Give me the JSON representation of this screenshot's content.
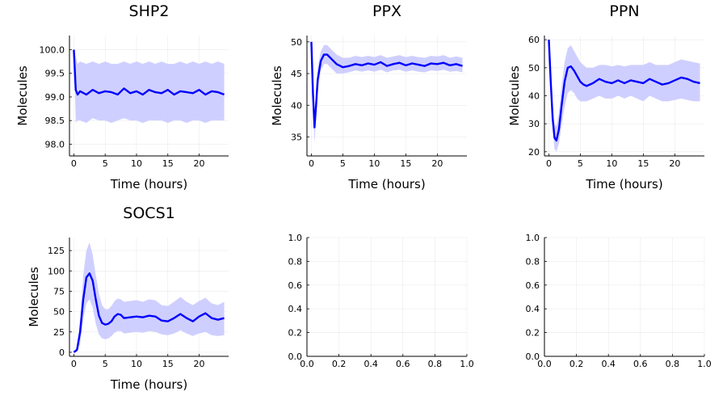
{
  "chart_data": [
    {
      "type": "line",
      "title": "SHP2",
      "xlabel": "Time (hours)",
      "ylabel": "Molecules",
      "xlim": [
        -0.7,
        24.7
      ],
      "ylim": [
        97.75,
        100.3
      ],
      "xticks": [
        0,
        5,
        10,
        15,
        20
      ],
      "xtick_labels": [
        "0",
        "5",
        "10",
        "15",
        "20"
      ],
      "yticks": [
        98.0,
        98.5,
        99.0,
        99.5,
        100.0
      ],
      "ytick_labels": [
        "98.0",
        "98.5",
        "99.0",
        "99.5",
        "100.0"
      ],
      "grid": true,
      "legend": "none",
      "line_color": "#0000ff",
      "band_color": "#ccccff",
      "series": [
        {
          "x": [
            0,
            0.3,
            0.6,
            1,
            2,
            3,
            4,
            5,
            6,
            7,
            8,
            9,
            10,
            11,
            12,
            13,
            14,
            15,
            16,
            17,
            18,
            19,
            20,
            21,
            22,
            23,
            24
          ],
          "mean": [
            100.0,
            99.15,
            99.05,
            99.12,
            99.05,
            99.15,
            99.08,
            99.12,
            99.1,
            99.05,
            99.18,
            99.08,
            99.12,
            99.05,
            99.15,
            99.1,
            99.08,
            99.15,
            99.05,
            99.12,
            99.1,
            99.08,
            99.15,
            99.05,
            99.12,
            99.1,
            99.05
          ],
          "lower": [
            100.0,
            98.45,
            98.5,
            98.5,
            98.45,
            98.55,
            98.5,
            98.5,
            98.45,
            98.5,
            98.55,
            98.5,
            98.5,
            98.45,
            98.5,
            98.5,
            98.5,
            98.45,
            98.5,
            98.5,
            98.45,
            98.5,
            98.5,
            98.45,
            98.5,
            98.5,
            98.5
          ],
          "upper": [
            100.0,
            99.85,
            99.7,
            99.75,
            99.7,
            99.75,
            99.7,
            99.75,
            99.7,
            99.7,
            99.75,
            99.7,
            99.75,
            99.7,
            99.75,
            99.7,
            99.75,
            99.7,
            99.7,
            99.75,
            99.7,
            99.75,
            99.7,
            99.75,
            99.7,
            99.75,
            99.7
          ]
        }
      ]
    },
    {
      "type": "line",
      "title": "PPX",
      "xlabel": "Time (hours)",
      "ylabel": "Molecules",
      "xlim": [
        -0.7,
        24.7
      ],
      "ylim": [
        32,
        51
      ],
      "xticks": [
        0,
        5,
        10,
        15,
        20
      ],
      "xtick_labels": [
        "0",
        "5",
        "10",
        "15",
        "20"
      ],
      "yticks": [
        35,
        40,
        45,
        50
      ],
      "ytick_labels": [
        "35",
        "40",
        "45",
        "50"
      ],
      "grid": true,
      "legend": "none",
      "line_color": "#0000ff",
      "band_color": "#ccccff",
      "series": [
        {
          "x": [
            0,
            0.25,
            0.5,
            0.75,
            1,
            1.5,
            2,
            2.5,
            3,
            4,
            5,
            6,
            7,
            8,
            9,
            10,
            11,
            12,
            13,
            14,
            15,
            16,
            17,
            18,
            19,
            20,
            21,
            22,
            23,
            24
          ],
          "mean": [
            50,
            42,
            36.5,
            40,
            44,
            47,
            48,
            48,
            47.5,
            46.5,
            46,
            46.2,
            46.5,
            46.3,
            46.6,
            46.4,
            46.8,
            46.2,
            46.5,
            46.7,
            46.3,
            46.6,
            46.4,
            46.2,
            46.6,
            46.5,
            46.7,
            46.3,
            46.5,
            46.2
          ],
          "lower": [
            50,
            40,
            34,
            38,
            42,
            45.5,
            46.5,
            46.5,
            46,
            45,
            45,
            45.2,
            45.5,
            45.3,
            45.5,
            45.3,
            45.6,
            45.2,
            45.5,
            45.6,
            45.3,
            45.5,
            45.3,
            45.2,
            45.5,
            45.4,
            45.6,
            45.3,
            45.4,
            45.2
          ],
          "upper": [
            50,
            44,
            39,
            42,
            46,
            48.5,
            49.5,
            49.5,
            49,
            48,
            47.5,
            47.5,
            47.8,
            47.6,
            47.8,
            47.6,
            47.9,
            47.5,
            47.7,
            47.9,
            47.6,
            47.8,
            47.6,
            47.5,
            47.8,
            47.7,
            47.9,
            47.5,
            47.7,
            47.5
          ]
        }
      ]
    },
    {
      "type": "line",
      "title": "PPN",
      "xlabel": "Time (hours)",
      "ylabel": "Molecules",
      "xlim": [
        -0.7,
        24.7
      ],
      "ylim": [
        18.5,
        61.5
      ],
      "xticks": [
        0,
        5,
        10,
        15,
        20
      ],
      "xtick_labels": [
        "0",
        "5",
        "10",
        "15",
        "20"
      ],
      "yticks": [
        20,
        30,
        40,
        50,
        60
      ],
      "ytick_labels": [
        "20",
        "30",
        "40",
        "50",
        "60"
      ],
      "grid": true,
      "legend": "none",
      "line_color": "#0000ff",
      "band_color": "#ccccff",
      "series": [
        {
          "x": [
            0,
            0.3,
            0.6,
            0.9,
            1.2,
            1.6,
            2,
            2.5,
            3,
            3.5,
            4,
            4.5,
            5,
            5.5,
            6,
            7,
            8,
            9,
            10,
            11,
            12,
            13,
            14,
            15,
            16,
            17,
            18,
            19,
            20,
            21,
            22,
            23,
            24
          ],
          "mean": [
            60,
            45,
            32,
            25,
            24,
            28,
            36,
            45,
            50,
            50.5,
            49,
            47,
            45,
            44,
            43.5,
            44.5,
            46,
            45,
            44.5,
            45.5,
            44.5,
            45.5,
            45,
            44.5,
            46,
            45,
            44,
            44.5,
            45.5,
            46.5,
            46,
            45,
            44.5
          ],
          "lower": [
            60,
            40,
            28,
            21,
            20,
            23,
            29,
            36,
            41,
            42,
            41,
            39,
            38,
            38,
            38,
            39,
            40,
            39,
            39,
            40,
            39,
            40,
            39,
            38,
            40,
            39,
            38,
            38,
            38.5,
            39,
            38.5,
            38,
            38
          ],
          "upper": [
            60,
            50,
            37,
            30,
            29,
            34,
            43,
            52,
            57,
            58,
            56,
            54,
            52,
            51,
            50,
            50,
            51,
            51,
            50.5,
            51,
            50.5,
            51,
            51,
            51,
            52,
            51,
            51,
            51,
            52,
            53,
            52.5,
            52,
            51.5
          ]
        }
      ]
    },
    {
      "type": "line",
      "title": "SOCS1",
      "xlabel": "Time (hours)",
      "ylabel": "Molecules",
      "xlim": [
        -0.7,
        24.7
      ],
      "ylim": [
        -5,
        141
      ],
      "xticks": [
        0,
        5,
        10,
        15,
        20
      ],
      "xtick_labels": [
        "0",
        "5",
        "10",
        "15",
        "20"
      ],
      "yticks": [
        0,
        25,
        50,
        75,
        100,
        125
      ],
      "ytick_labels": [
        "0",
        "25",
        "50",
        "75",
        "100",
        "125"
      ],
      "grid": true,
      "legend": "none",
      "line_color": "#0000ff",
      "band_color": "#ccccff",
      "series": [
        {
          "x": [
            0,
            0.5,
            1,
            1.5,
            2,
            2.5,
            3,
            3.5,
            4,
            4.5,
            5,
            5.5,
            6,
            6.5,
            7,
            7.5,
            8,
            9,
            10,
            11,
            12,
            13,
            14,
            15,
            16,
            17,
            18,
            19,
            20,
            21,
            22,
            23,
            24
          ],
          "mean": [
            0,
            3,
            25,
            65,
            92,
            97,
            88,
            65,
            45,
            36,
            34,
            35,
            38,
            44,
            47,
            46,
            42,
            43,
            44,
            43,
            45,
            44,
            39,
            38,
            42,
            47,
            42,
            38,
            44,
            48,
            42,
            40,
            42
          ],
          "lower": [
            0,
            0,
            10,
            40,
            60,
            65,
            55,
            35,
            22,
            17,
            16,
            17,
            20,
            24,
            26,
            26,
            23,
            24,
            25,
            24,
            26,
            25,
            22,
            21,
            23,
            27,
            23,
            20,
            23,
            25,
            21,
            20,
            21
          ],
          "upper": [
            0,
            6,
            42,
            95,
            125,
            135,
            120,
            95,
            72,
            58,
            53,
            53,
            57,
            63,
            66,
            65,
            62,
            63,
            64,
            62,
            65,
            64,
            58,
            57,
            62,
            68,
            62,
            58,
            63,
            67,
            60,
            58,
            62
          ]
        }
      ]
    },
    {
      "type": "line",
      "title": "",
      "xlabel": "",
      "ylabel": "",
      "xlim": [
        0,
        1
      ],
      "ylim": [
        0,
        1
      ],
      "xticks": [
        0,
        0.2,
        0.4,
        0.6,
        0.8,
        1.0
      ],
      "xtick_labels": [
        "0.0",
        "0.2",
        "0.4",
        "0.6",
        "0.8",
        "1.0"
      ],
      "yticks": [
        0,
        0.2,
        0.4,
        0.6,
        0.8,
        1.0
      ],
      "ytick_labels": [
        "0.0",
        "0.2",
        "0.4",
        "0.6",
        "0.8",
        "1.0"
      ],
      "grid": true,
      "legend": "none",
      "series": []
    },
    {
      "type": "line",
      "title": "",
      "xlabel": "",
      "ylabel": "",
      "xlim": [
        0,
        1
      ],
      "ylim": [
        0,
        1
      ],
      "xticks": [
        0,
        0.2,
        0.4,
        0.6,
        0.8,
        1.0
      ],
      "xtick_labels": [
        "0.0",
        "0.2",
        "0.4",
        "0.6",
        "0.8",
        "1.0"
      ],
      "yticks": [
        0,
        0.2,
        0.4,
        0.6,
        0.8,
        1.0
      ],
      "ytick_labels": [
        "0.0",
        "0.2",
        "0.4",
        "0.6",
        "0.8",
        "1.0"
      ],
      "grid": true,
      "legend": "none",
      "series": []
    }
  ]
}
